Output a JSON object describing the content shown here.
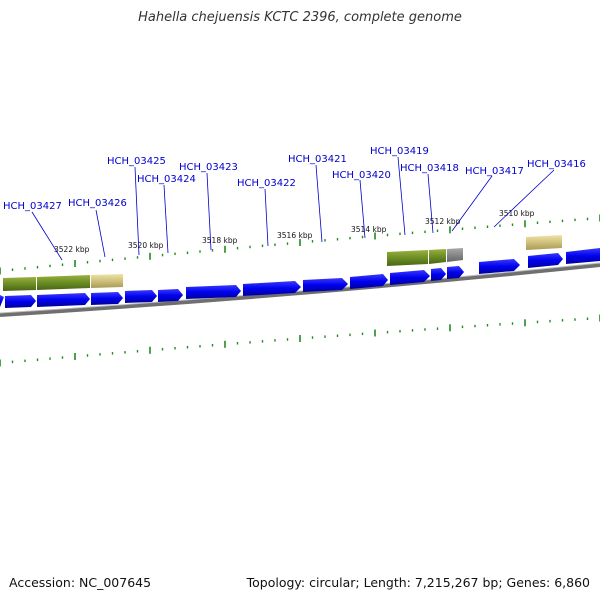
{
  "title": "Hahella chejuensis KCTC 2396, complete genome",
  "footer": {
    "accession": "Accession: NC_007645",
    "summary": "Topology: circular; Length: 7,215,267 bp; Genes: 6,860"
  },
  "colors": {
    "gene_arrow": "#0000ee",
    "gene_label": "#0000cc",
    "tick": "#228b22",
    "backbone": "#777777",
    "olive": "#6b8e23",
    "khaki": "#cfc07a",
    "gray_block": "#888888"
  },
  "gene_labels": [
    {
      "name": "HCH_03427"
    },
    {
      "name": "HCH_03426"
    },
    {
      "name": "HCH_03425"
    },
    {
      "name": "HCH_03424"
    },
    {
      "name": "HCH_03423"
    },
    {
      "name": "HCH_03422"
    },
    {
      "name": "HCH_03421"
    },
    {
      "name": "HCH_03420"
    },
    {
      "name": "HCH_03419"
    },
    {
      "name": "HCH_03418"
    },
    {
      "name": "HCH_03417"
    },
    {
      "name": "HCH_03416"
    }
  ],
  "scale_labels": [
    "3522 kbp",
    "3520 kbp",
    "3518 kbp",
    "3516 kbp",
    "3514 kbp",
    "3512 kbp",
    "3510 kbp"
  ]
}
